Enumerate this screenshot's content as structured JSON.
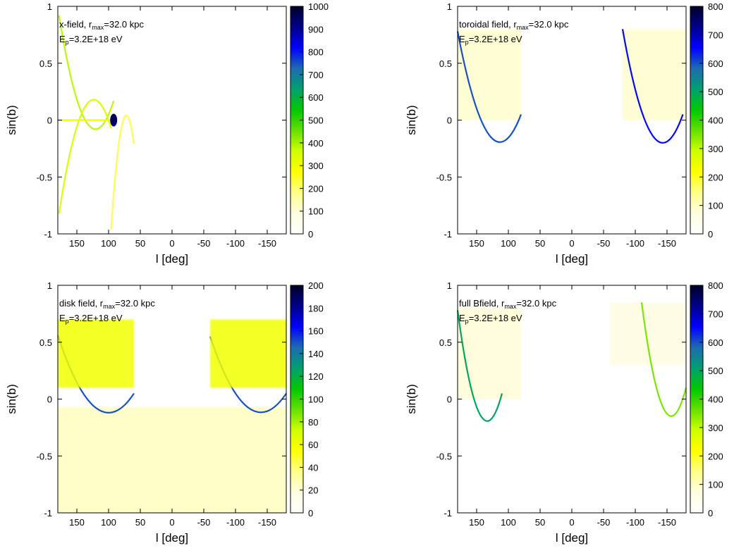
{
  "colorbar_stops": [
    "#ffffff",
    "#fffde0",
    "#ffff8a",
    "#ffff00",
    "#cfff00",
    "#66e000",
    "#00c800",
    "#00a070",
    "#1e6bb0",
    "#0000ff",
    "#00008a",
    "#000028"
  ],
  "chart_data": [
    {
      "type": "heatmap",
      "title": "",
      "annotation": {
        "line1_prefix": "x-field, r",
        "line1_sub": "max",
        "line1_suffix": "=32.0 kpc",
        "line2_prefix": "E",
        "line2_sub": "p",
        "line2_suffix": "=3.2E+18 eV"
      },
      "xlabel": "l [deg]",
      "ylabel": "sin(b)",
      "xlim": [
        180,
        -180
      ],
      "ylim": [
        -1,
        1
      ],
      "x_ticks": [
        "150",
        "100",
        "50",
        "0",
        "-50",
        "-100",
        "-150"
      ],
      "y_ticks": [
        "-1",
        "-0.5",
        "0",
        "0.5",
        "1"
      ],
      "colorbar": {
        "range": [
          0,
          1000
        ],
        "ticks": [
          "0",
          "100",
          "200",
          "300",
          "400",
          "500",
          "600",
          "700",
          "800",
          "900",
          "1000"
        ]
      },
      "features": [
        {
          "shape": "arc",
          "l_start": 178,
          "l_end": 92,
          "sinb": 0.92,
          "intensity": 380
        },
        {
          "shape": "arc",
          "l_start": 178,
          "l_end": 96,
          "sinb": -0.82,
          "intensity": 340
        },
        {
          "shape": "ridge",
          "l_start": 180,
          "l_end": 88,
          "sinb": 0.0,
          "intensity": 300
        },
        {
          "shape": "spot",
          "l": 92,
          "sinb": 0.0,
          "intensity": 950
        },
        {
          "shape": "arc",
          "l_start": 96,
          "l_end": 60,
          "sinb": -0.96,
          "intensity": 220
        }
      ]
    },
    {
      "type": "heatmap",
      "title": "",
      "annotation": {
        "line1_prefix": "toroidal field, r",
        "line1_sub": "max",
        "line1_suffix": "=32.0 kpc",
        "line2_prefix": "E",
        "line2_sub": "p",
        "line2_suffix": "=3.2E+18 eV"
      },
      "xlabel": "l [deg]",
      "ylabel": "sin(b)",
      "xlim": [
        180,
        -180
      ],
      "ylim": [
        -1,
        1
      ],
      "x_ticks": [
        "150",
        "100",
        "50",
        "0",
        "-50",
        "-100",
        "-150"
      ],
      "y_ticks": [
        "-1",
        "-0.5",
        "0",
        "0.5",
        "1"
      ],
      "colorbar": {
        "range": [
          0,
          800
        ],
        "ticks": [
          "0",
          "100",
          "200",
          "300",
          "400",
          "500",
          "600",
          "700",
          "800"
        ]
      },
      "features": [
        {
          "shape": "band",
          "l_start": 180,
          "l_end": 80,
          "sinb_bottom": 0.0,
          "sinb_top": 0.8,
          "intensity": 90
        },
        {
          "shape": "band",
          "l_start": -80,
          "l_end": -180,
          "sinb_bottom": 0.0,
          "sinb_top": 0.8,
          "intensity": 90
        },
        {
          "shape": "arc",
          "l_start": 180,
          "l_end": 80,
          "sinb": 0.78,
          "intensity": 600
        },
        {
          "shape": "arc",
          "l_start": -80,
          "l_end": -175,
          "sinb": 0.8,
          "intensity": 650
        }
      ]
    },
    {
      "type": "heatmap",
      "title": "",
      "annotation": {
        "line1_prefix": "disk field, r",
        "line1_sub": "max",
        "line1_suffix": "=32.0 kpc",
        "line2_prefix": "E",
        "line2_sub": "p",
        "line2_suffix": "=3.2E+18 eV"
      },
      "xlabel": "l [deg]",
      "ylabel": "sin(b)",
      "xlim": [
        180,
        -180
      ],
      "ylim": [
        -1,
        1
      ],
      "x_ticks": [
        "150",
        "100",
        "50",
        "0",
        "-50",
        "-100",
        "-150"
      ],
      "y_ticks": [
        "-1",
        "-0.5",
        "0",
        "0.5",
        "1"
      ],
      "colorbar": {
        "range": [
          0,
          200
        ],
        "ticks": [
          "0",
          "20",
          "40",
          "60",
          "80",
          "100",
          "120",
          "140",
          "160",
          "180",
          "200"
        ]
      },
      "features": [
        {
          "shape": "band",
          "l_start": 180,
          "l_end": -180,
          "sinb_bottom": -1.0,
          "sinb_top": -0.07,
          "intensity": 25
        },
        {
          "shape": "arc",
          "l_start": 180,
          "l_end": 60,
          "sinb": 0.56,
          "intensity": 150
        },
        {
          "shape": "arc",
          "l_start": -60,
          "l_end": -180,
          "sinb": 0.55,
          "intensity": 150
        },
        {
          "shape": "band",
          "l_start": 180,
          "l_end": 60,
          "sinb_bottom": 0.1,
          "sinb_top": 0.7,
          "intensity": 60
        },
        {
          "shape": "band",
          "l_start": -60,
          "l_end": -180,
          "sinb_bottom": 0.1,
          "sinb_top": 0.7,
          "intensity": 60
        }
      ]
    },
    {
      "type": "heatmap",
      "title": "",
      "annotation": {
        "line1_prefix": "full Bfield, r",
        "line1_sub": "max",
        "line1_suffix": "=32.0 kpc",
        "line2_prefix": "E",
        "line2_sub": "p",
        "line2_suffix": "=3.2E+18 eV"
      },
      "xlabel": "l [deg]",
      "ylabel": "sin(b)",
      "xlim": [
        180,
        -180
      ],
      "ylim": [
        -1,
        1
      ],
      "x_ticks": [
        "150",
        "100",
        "50",
        "0",
        "-50",
        "-100",
        "-150"
      ],
      "y_ticks": [
        "-1",
        "-0.5",
        "0",
        "0.5",
        "1"
      ],
      "colorbar": {
        "range": [
          0,
          800
        ],
        "ticks": [
          "0",
          "100",
          "200",
          "300",
          "400",
          "500",
          "600",
          "700",
          "800"
        ]
      },
      "features": [
        {
          "shape": "band",
          "l_start": 180,
          "l_end": 80,
          "sinb_bottom": 0.0,
          "sinb_top": 0.8,
          "intensity": 80
        },
        {
          "shape": "arc",
          "l_start": 180,
          "l_end": 110,
          "sinb": 0.78,
          "intensity": 500
        },
        {
          "shape": "band",
          "l_start": -60,
          "l_end": -180,
          "sinb_bottom": 0.3,
          "sinb_top": 0.85,
          "intensity": 70
        },
        {
          "shape": "arc",
          "l_start": -110,
          "l_end": -180,
          "sinb": 0.85,
          "intensity": 350
        }
      ]
    }
  ]
}
